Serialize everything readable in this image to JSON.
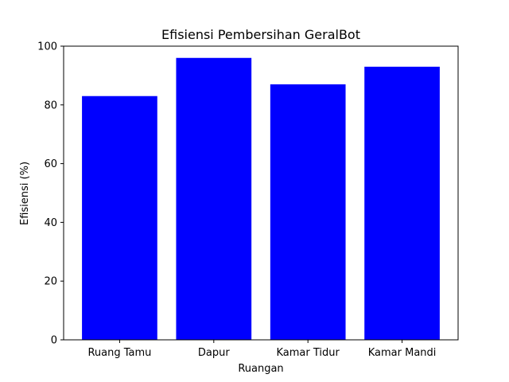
{
  "chart_data": {
    "type": "bar",
    "title": "Efisiensi Pembersihan GeralBot",
    "xlabel": "Ruangan",
    "ylabel": "Efisiensi (%)",
    "categories": [
      "Ruang Tamu",
      "Dapur",
      "Kamar Tidur",
      "Kamar Mandi"
    ],
    "values": [
      83,
      96,
      87,
      93
    ],
    "ylim": [
      0,
      100
    ],
    "yticks": [
      0,
      20,
      40,
      60,
      80,
      100
    ],
    "bar_color": "#0000ff",
    "grid": false,
    "legend": "none"
  }
}
